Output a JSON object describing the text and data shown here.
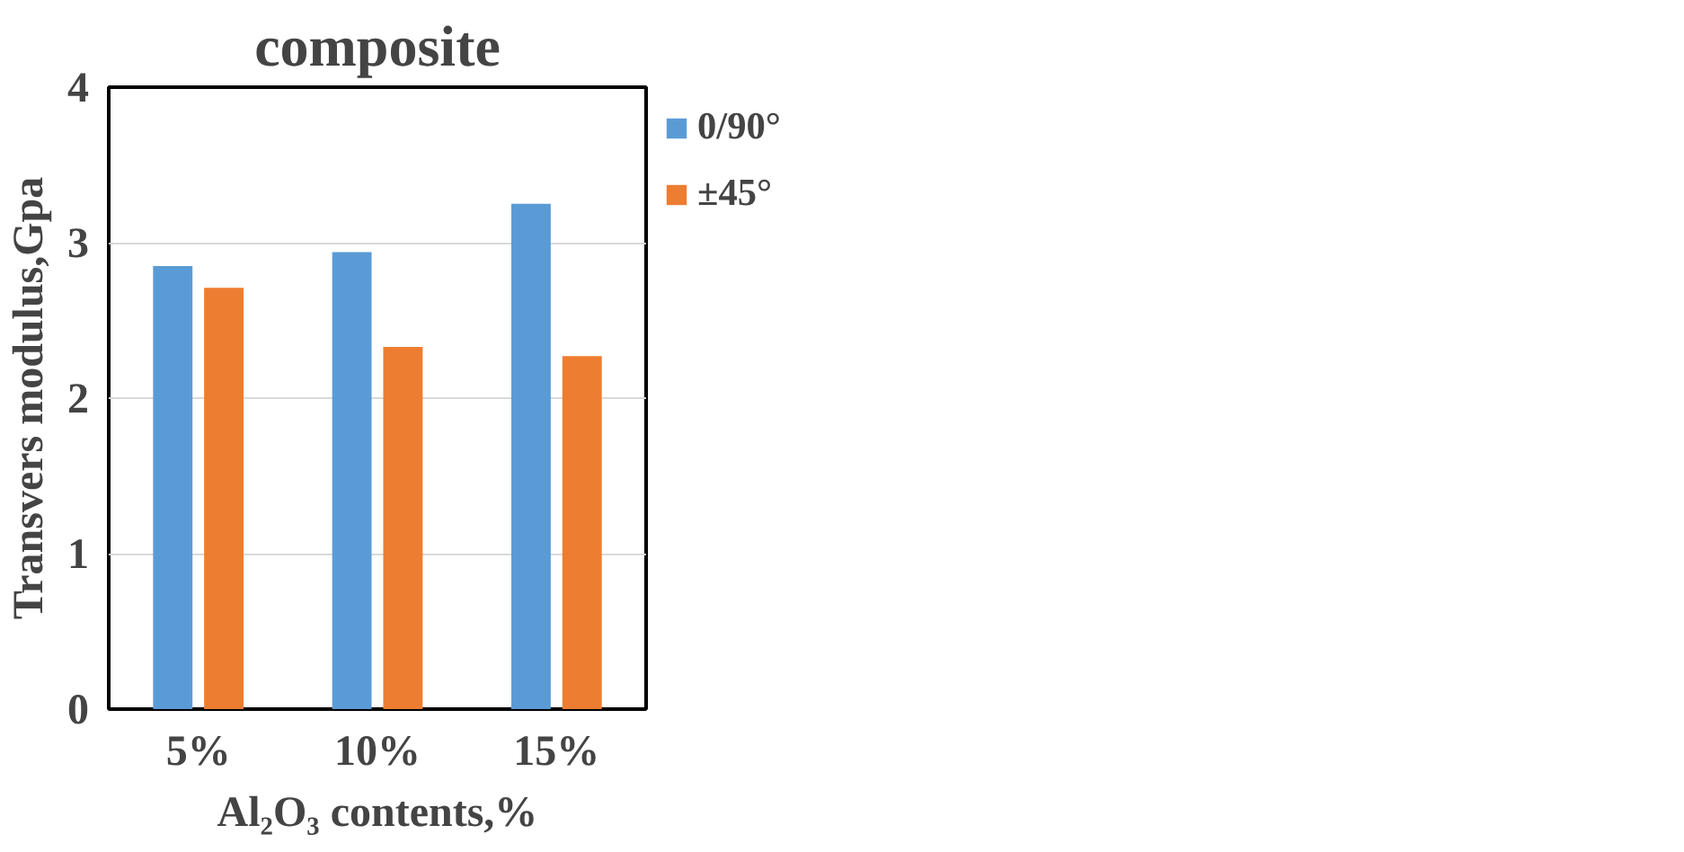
{
  "chart_data": {
    "type": "bar",
    "title": "composite",
    "xlabel": "Al₂O₃ contents,%",
    "ylabel": "Transvers modulus,Gpa",
    "categories": [
      "5%",
      "10%",
      "15%"
    ],
    "series": [
      {
        "name": "0/90°",
        "color": "#5b9bd5",
        "values": [
          2.85,
          2.94,
          3.25
        ]
      },
      {
        "name": "±45°",
        "color": "#ed7d31",
        "values": [
          2.71,
          2.33,
          2.27
        ]
      }
    ],
    "ylim": [
      0,
      4
    ],
    "yticks": [
      0,
      1,
      2,
      3,
      4
    ],
    "grid": "y",
    "legend": "right"
  }
}
